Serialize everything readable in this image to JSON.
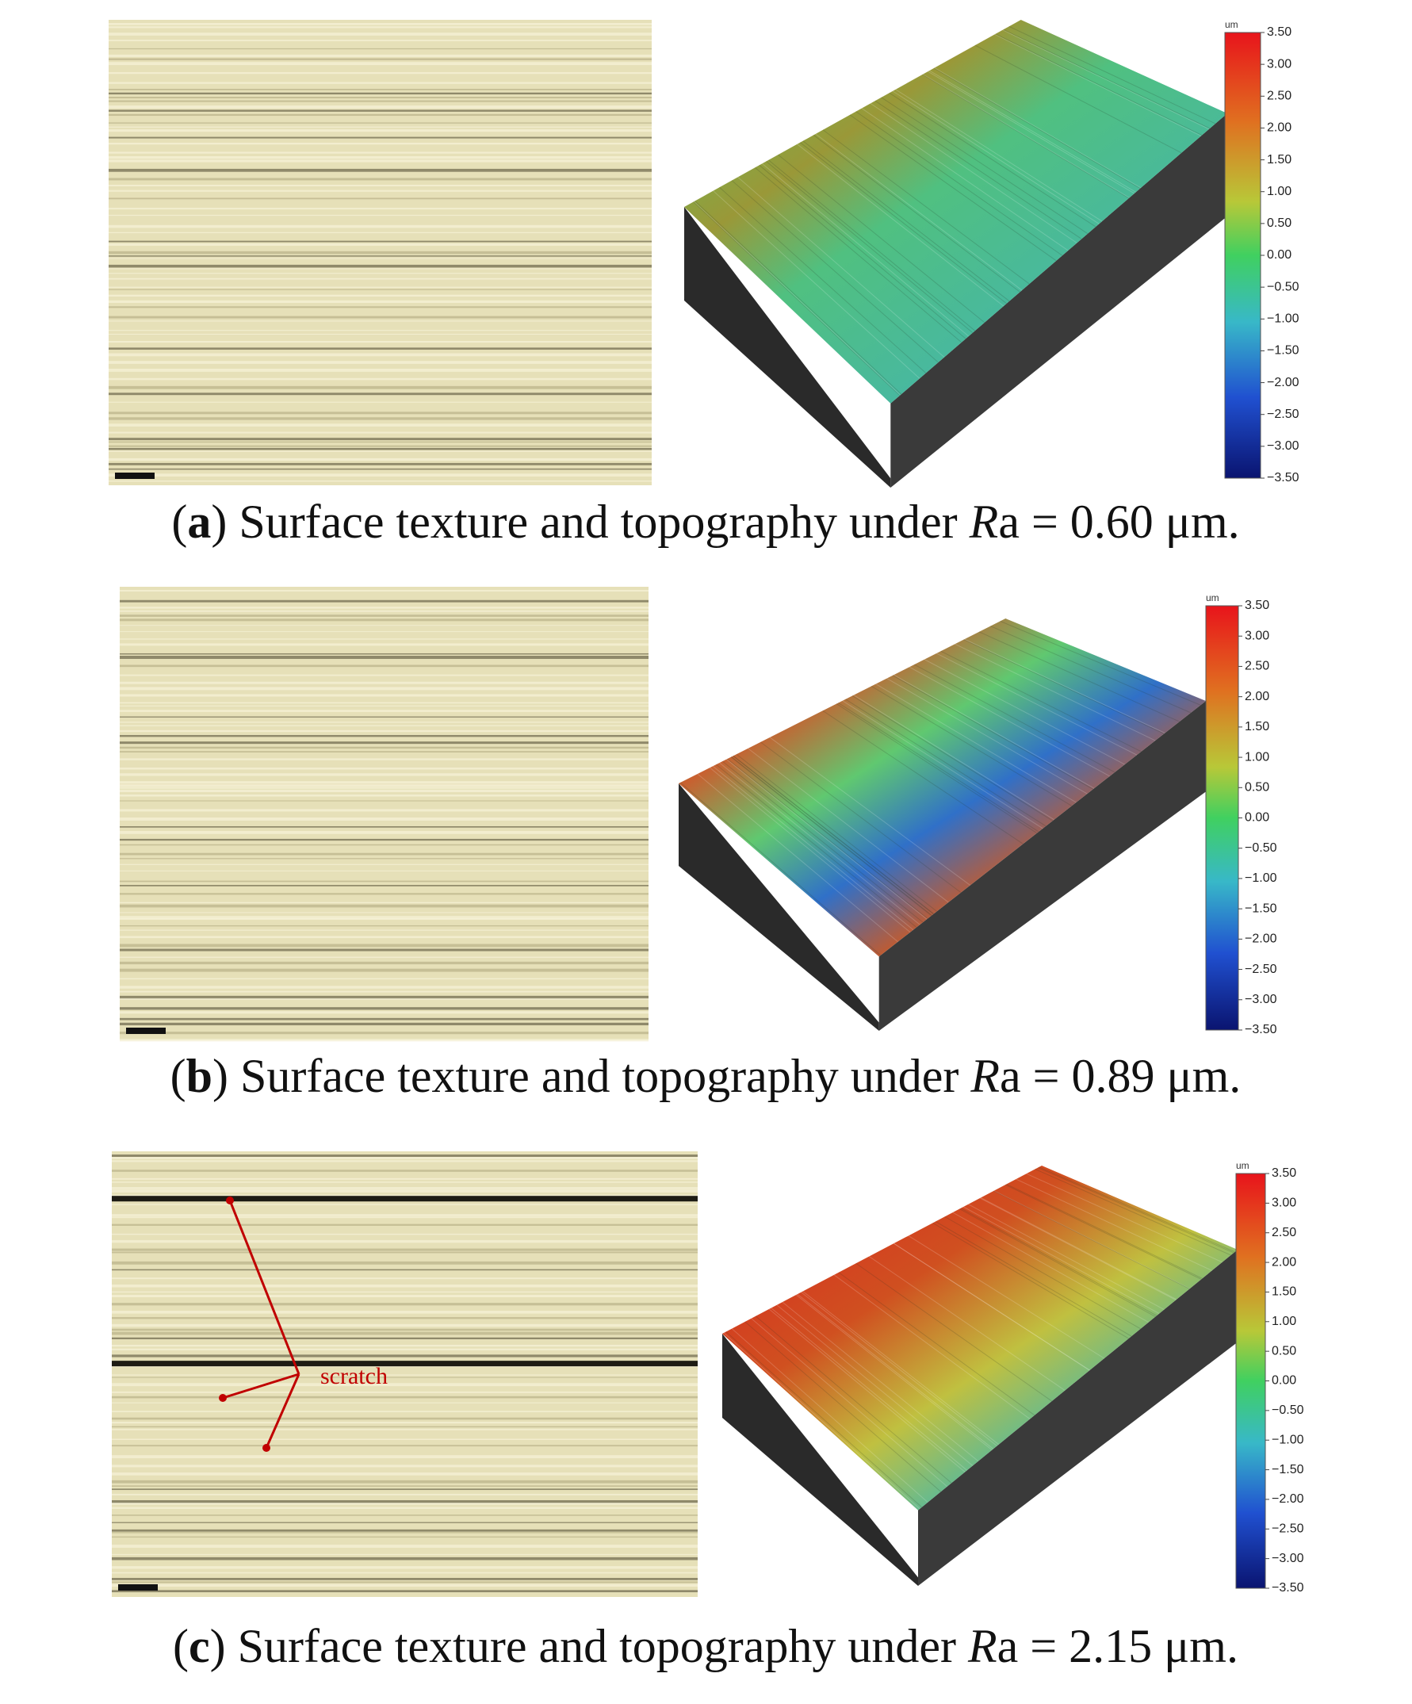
{
  "colorbar": {
    "unit": "um",
    "ticks": [
      "3.50",
      "3.00",
      "2.50",
      "2.00",
      "1.50",
      "1.00",
      "0.50",
      "0.00",
      "−0.50",
      "−1.00",
      "−1.50",
      "−2.00",
      "−2.50",
      "−3.00",
      "−3.50"
    ]
  },
  "panels": [
    {
      "caption_parts": [
        "(",
        "a",
        ") Surface texture and topography under ",
        "R",
        "a = 0.60 μm."
      ]
    },
    {
      "caption_parts": [
        "(",
        "b",
        ") Surface texture and topography under ",
        "R",
        "a = 0.89 μm."
      ]
    },
    {
      "caption_parts": [
        "(",
        "c",
        ") Surface texture and topography under ",
        "R",
        "a = 2.15 μm."
      ],
      "annotation": "scratch"
    }
  ]
}
